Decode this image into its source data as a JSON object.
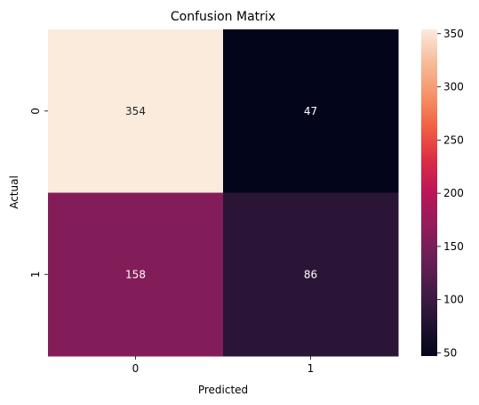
{
  "chart_data": {
    "type": "heatmap",
    "title": "Confusion Matrix",
    "xlabel": "Predicted",
    "ylabel": "Actual",
    "x_categories": [
      "0",
      "1"
    ],
    "y_categories": [
      "0",
      "1"
    ],
    "values": [
      [
        354,
        47
      ],
      [
        158,
        86
      ]
    ],
    "colorbar": {
      "min": 47,
      "max": 354,
      "ticks": [
        50,
        100,
        150,
        200,
        250,
        300,
        350
      ],
      "tick_labels": [
        "50",
        "100",
        "150",
        "200",
        "250",
        "300",
        "350"
      ]
    },
    "colormap": "rocket"
  }
}
